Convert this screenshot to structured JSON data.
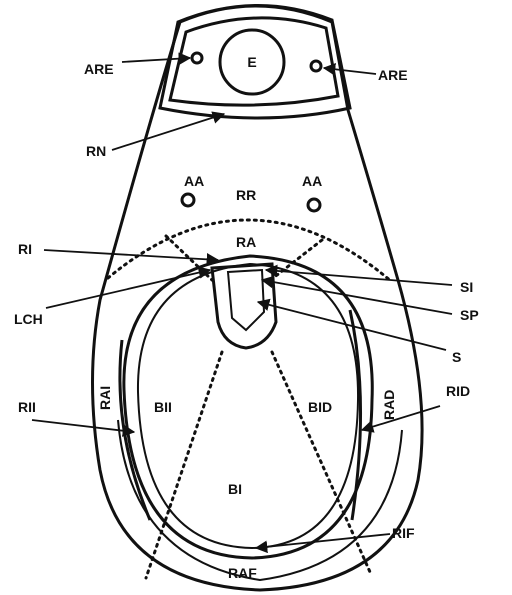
{
  "labels": {
    "E": "E",
    "ARE": "ARE",
    "RN": "RN",
    "AA": "AA",
    "RR": "RR",
    "RA": "RA",
    "RI": "RI",
    "LCH": "LCH",
    "SI": "SI",
    "SP": "SP",
    "S": "S",
    "RAI": "RAI",
    "RAD": "RAD",
    "BII": "BII",
    "BID": "BID",
    "RII": "RII",
    "RID": "RID",
    "BI": "BI",
    "RIF": "RIF",
    "RAF": "RAF"
  },
  "colors": {
    "stroke": "#111111",
    "background": "#ffffff"
  }
}
